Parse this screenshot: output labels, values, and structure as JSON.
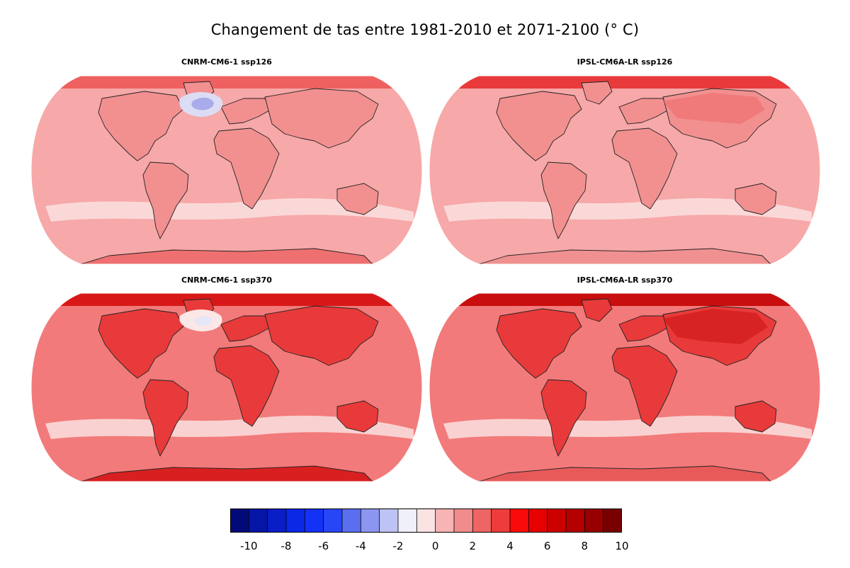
{
  "figure": {
    "title": "Changement de tas entre 1981-2010 et 2071-2100 (° C)"
  },
  "panels": [
    {
      "id": "cnrm-ssp126",
      "title": "CNRM-CM6-1 ssp126",
      "model": "CNRM-CM6-1",
      "scenario": "ssp126",
      "background_color": "#f7a8a8",
      "land_color": "#f29090",
      "arctic_color": "#ef6060",
      "antarctic_color": "#ee7070",
      "features": [
        "north-atlantic-cooling-blue",
        "southern-ocean-pale-band"
      ]
    },
    {
      "id": "ipsl-ssp126",
      "title": "IPSL-CM6A-LR ssp126",
      "model": "IPSL-CM6A-LR",
      "scenario": "ssp126",
      "background_color": "#f7a8a8",
      "land_color": "#f29090",
      "arctic_color": "#e83a3a",
      "antarctic_color": "#f09090",
      "features": [
        "southern-ocean-pale-band",
        "eurasia-warm"
      ]
    },
    {
      "id": "cnrm-ssp370",
      "title": "CNRM-CM6-1 ssp370",
      "model": "CNRM-CM6-1",
      "scenario": "ssp370",
      "background_color": "#f27a7a",
      "land_color": "#e83a3a",
      "arctic_color": "#d81818",
      "antarctic_color": "#d82020",
      "features": [
        "north-atlantic-cooling-pale",
        "southern-ocean-pale-band"
      ]
    },
    {
      "id": "ipsl-ssp370",
      "title": "IPSL-CM6A-LR ssp370",
      "model": "IPSL-CM6A-LR",
      "scenario": "ssp370",
      "background_color": "#f27a7a",
      "land_color": "#e83a3a",
      "arctic_color": "#c80e0e",
      "antarctic_color": "#e85a5a",
      "features": [
        "eurasia-hot",
        "southern-ocean-pale-band"
      ]
    }
  ],
  "colorbar": {
    "bins": [
      "#020a7a",
      "#0515a5",
      "#0a1ec8",
      "#0a28e6",
      "#1432f5",
      "#2846f5",
      "#5a6ef0",
      "#8c96f0",
      "#bec3f5",
      "#f0f0fa",
      "#fce3e3",
      "#f7b4b4",
      "#f28c8c",
      "#ef6464",
      "#ee3c3c",
      "#fa0a0a",
      "#e60000",
      "#cd0000",
      "#b40000",
      "#960000",
      "#780000"
    ],
    "tick_labels": [
      "-10",
      "-8",
      "-6",
      "-4",
      "-2",
      "0",
      "2",
      "4",
      "6",
      "8",
      "10"
    ],
    "range": [
      -10,
      10
    ],
    "units": "° C"
  }
}
